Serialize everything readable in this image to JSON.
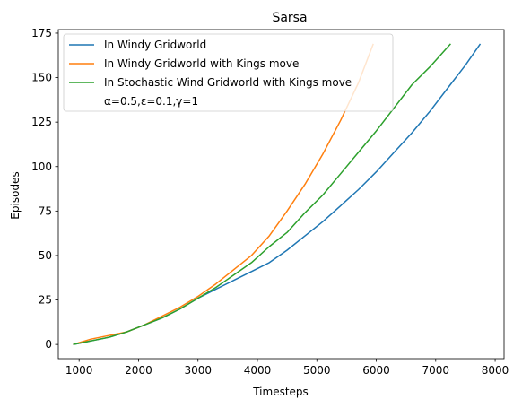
{
  "chart_data": {
    "type": "line",
    "title": "Sarsa",
    "xlabel": "Timesteps",
    "ylabel": "Episodes",
    "xlim": [
      650,
      8150
    ],
    "ylim": [
      -8,
      177
    ],
    "xticks": [
      1000,
      2000,
      3000,
      4000,
      5000,
      6000,
      7000,
      8000
    ],
    "yticks": [
      0,
      25,
      50,
      75,
      100,
      125,
      150,
      175
    ],
    "grid": false,
    "legend_position": "top-left",
    "legend_note": "α=0.5,ε=0.1,γ=1",
    "series": [
      {
        "name": "In Windy Gridworld",
        "color": "#1f77b4",
        "points": [
          [
            900,
            0
          ],
          [
            1200,
            2
          ],
          [
            1500,
            4
          ],
          [
            1800,
            7
          ],
          [
            2100,
            11
          ],
          [
            2400,
            15
          ],
          [
            2700,
            20
          ],
          [
            3000,
            26
          ],
          [
            3300,
            31
          ],
          [
            3600,
            36
          ],
          [
            3900,
            41
          ],
          [
            4200,
            46
          ],
          [
            4500,
            53
          ],
          [
            4800,
            61
          ],
          [
            5100,
            69
          ],
          [
            5400,
            78
          ],
          [
            5700,
            87
          ],
          [
            6000,
            97
          ],
          [
            6300,
            108
          ],
          [
            6600,
            119
          ],
          [
            6900,
            131
          ],
          [
            7200,
            144
          ],
          [
            7500,
            157
          ],
          [
            7750,
            169
          ]
        ]
      },
      {
        "name": "In Windy Gridworld with Kings move",
        "color": "#ff7f0e",
        "points": [
          [
            900,
            0
          ],
          [
            1200,
            3
          ],
          [
            1500,
            5
          ],
          [
            1800,
            7
          ],
          [
            2100,
            11
          ],
          [
            2400,
            16
          ],
          [
            2700,
            21
          ],
          [
            3000,
            27
          ],
          [
            3300,
            34
          ],
          [
            3600,
            42
          ],
          [
            3900,
            50
          ],
          [
            4200,
            61
          ],
          [
            4500,
            75
          ],
          [
            4800,
            90
          ],
          [
            5100,
            107
          ],
          [
            5400,
            126
          ],
          [
            5700,
            147
          ],
          [
            5950,
            169
          ]
        ]
      },
      {
        "name": "In Stochastic Wind Gridworld with Kings move",
        "color": "#2ca02c",
        "points": [
          [
            900,
            0
          ],
          [
            1200,
            2
          ],
          [
            1500,
            4
          ],
          [
            1800,
            7
          ],
          [
            2100,
            11
          ],
          [
            2400,
            15
          ],
          [
            2700,
            20
          ],
          [
            3000,
            26
          ],
          [
            3300,
            32
          ],
          [
            3600,
            39
          ],
          [
            3900,
            46
          ],
          [
            4200,
            55
          ],
          [
            4500,
            63
          ],
          [
            4800,
            74
          ],
          [
            5100,
            84
          ],
          [
            5400,
            96
          ],
          [
            5700,
            108
          ],
          [
            6000,
            120
          ],
          [
            6300,
            133
          ],
          [
            6600,
            146
          ],
          [
            6900,
            156
          ],
          [
            7250,
            169
          ]
        ]
      }
    ]
  }
}
